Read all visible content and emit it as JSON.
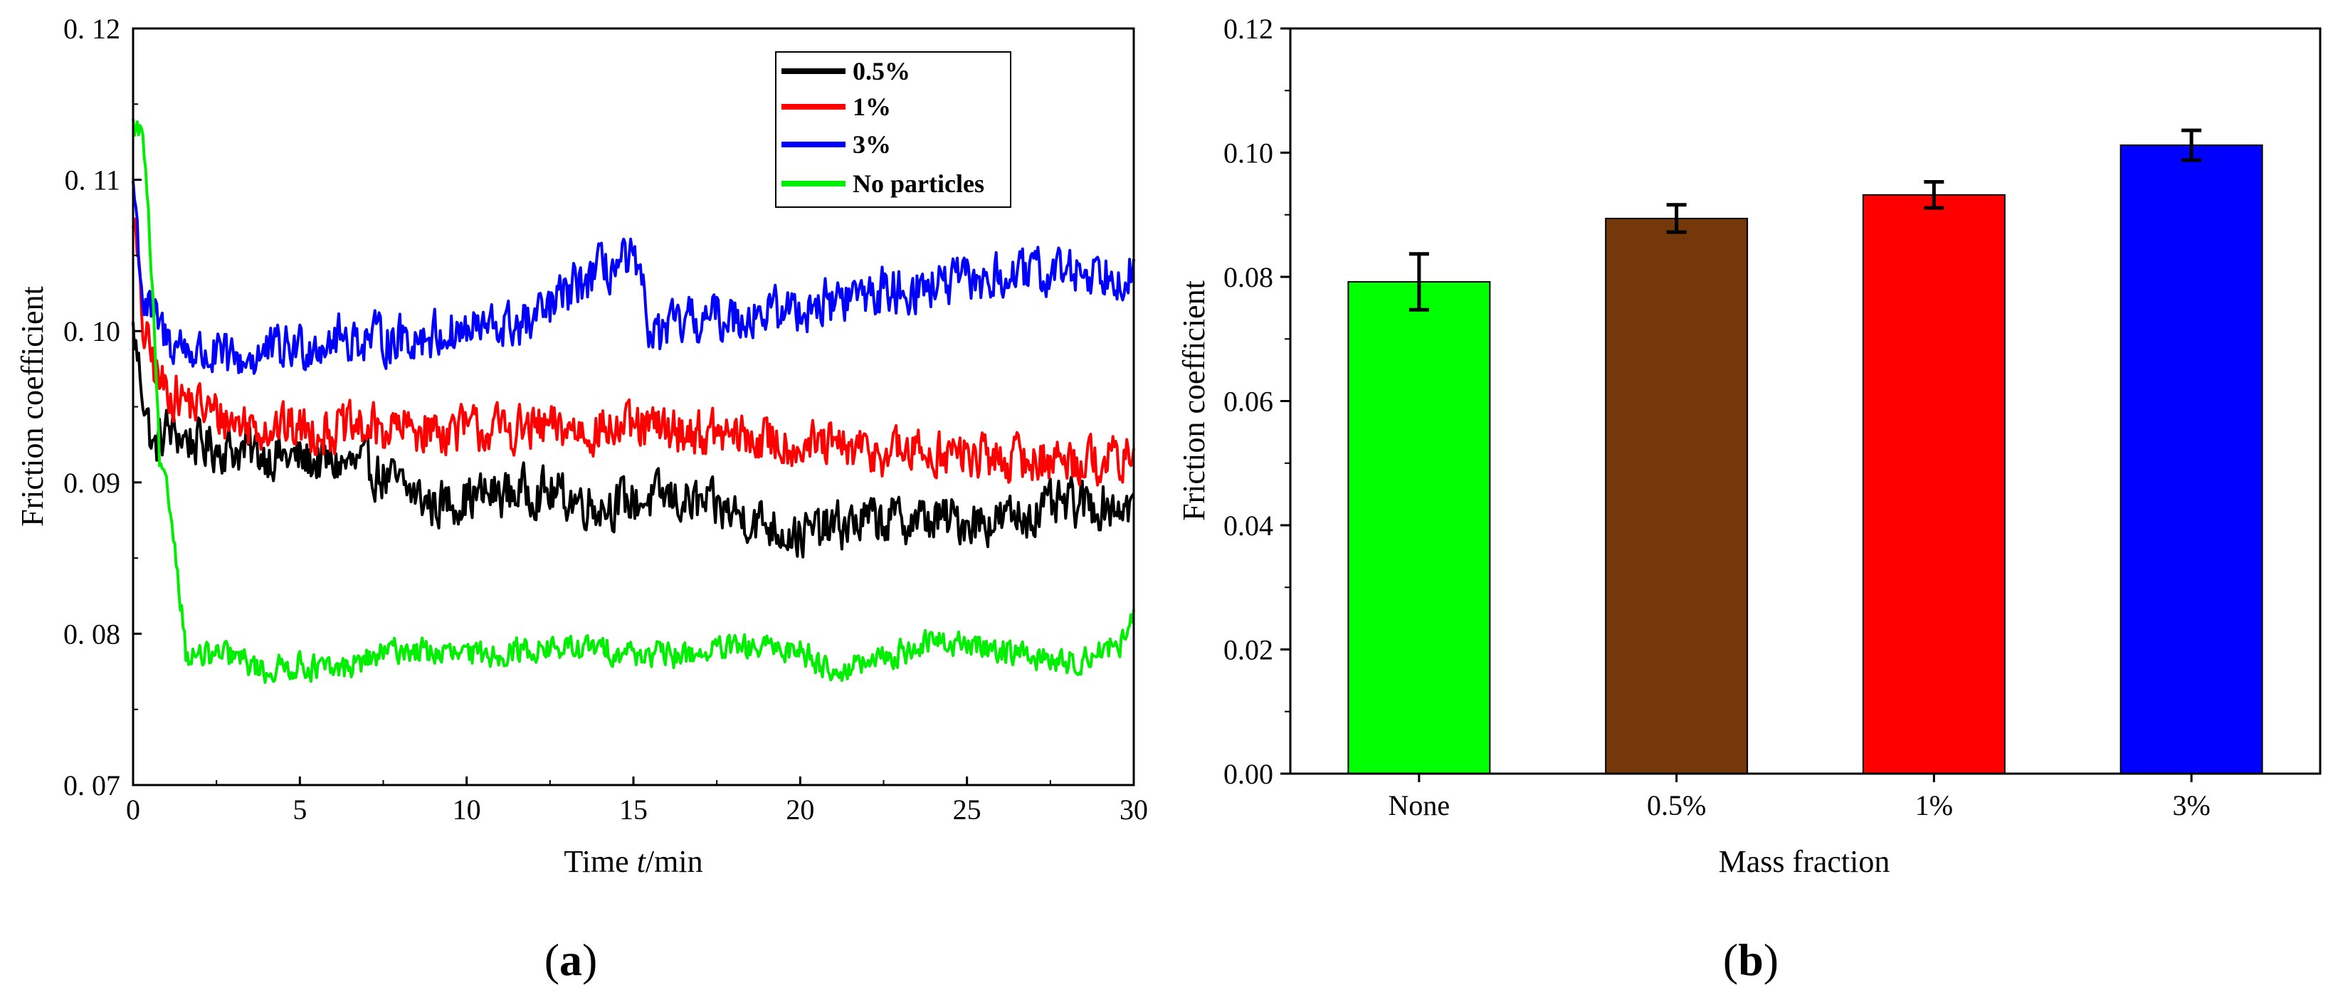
{
  "figure": {
    "panel_a_label": {
      "open": "(",
      "letter": "a",
      "close": ")"
    },
    "panel_b_label": {
      "open": "(",
      "letter": "b",
      "close": ")"
    }
  },
  "chart_data": [
    {
      "id": "a",
      "type": "line",
      "title": "",
      "xlabel": {
        "prefix": "Time ",
        "italic": "t",
        "suffix": "/min"
      },
      "ylabel": "Friction coefficient",
      "xlim": [
        0,
        30
      ],
      "ylim": [
        0.07,
        0.12
      ],
      "x_ticks": [
        0,
        5,
        10,
        15,
        20,
        25,
        30
      ],
      "x_tick_labels": [
        "0",
        "5",
        "10",
        "15",
        "20",
        "25",
        "30"
      ],
      "y_ticks": [
        0.07,
        0.08,
        0.09,
        0.1,
        0.11,
        0.12
      ],
      "y_tick_labels": [
        "0. 07",
        "0. 08",
        "0. 09",
        "0. 10",
        "0. 11",
        "0. 12"
      ],
      "grid": false,
      "legend_position": "top-right",
      "series": [
        {
          "name": "0.5%",
          "color": "#000000",
          "noise": 0.0022,
          "keypoints": [
            [
              0,
              0.1
            ],
            [
              0.3,
              0.096
            ],
            [
              0.6,
              0.092
            ],
            [
              1,
              0.0935
            ],
            [
              2,
              0.0925
            ],
            [
              3,
              0.0922
            ],
            [
              5,
              0.0915
            ],
            [
              7,
              0.091
            ],
            [
              9,
              0.0885
            ],
            [
              10,
              0.089
            ],
            [
              12,
              0.0895
            ],
            [
              14,
              0.0885
            ],
            [
              16,
              0.089
            ],
            [
              18,
              0.088
            ],
            [
              20,
              0.0865
            ],
            [
              22,
              0.0875
            ],
            [
              24,
              0.0875
            ],
            [
              26,
              0.0875
            ],
            [
              28,
              0.0885
            ],
            [
              30,
              0.0885
            ]
          ]
        },
        {
          "name": "1%",
          "color": "#ff0000",
          "noise": 0.0022,
          "keypoints": [
            [
              0,
              0.108
            ],
            [
              0.3,
              0.1
            ],
            [
              0.8,
              0.0965
            ],
            [
              1.5,
              0.0955
            ],
            [
              3,
              0.094
            ],
            [
              5,
              0.0935
            ],
            [
              8,
              0.0935
            ],
            [
              10,
              0.0935
            ],
            [
              12,
              0.0935
            ],
            [
              14,
              0.0935
            ],
            [
              16,
              0.0935
            ],
            [
              18,
              0.093
            ],
            [
              20,
              0.0925
            ],
            [
              22,
              0.092
            ],
            [
              24,
              0.092
            ],
            [
              26,
              0.0915
            ],
            [
              28,
              0.0915
            ],
            [
              30,
              0.0915
            ]
          ]
        },
        {
          "name": "3%",
          "color": "#0000ff",
          "noise": 0.0022,
          "keypoints": [
            [
              0,
              0.11
            ],
            [
              0.3,
              0.102
            ],
            [
              1,
              0.0995
            ],
            [
              2,
              0.0985
            ],
            [
              3,
              0.098
            ],
            [
              4,
              0.0985
            ],
            [
              6,
              0.0995
            ],
            [
              8,
              0.0995
            ],
            [
              10,
              0.1
            ],
            [
              12,
              0.1005
            ],
            [
              13,
              0.1025
            ],
            [
              14,
              0.104
            ],
            [
              15,
              0.1045
            ],
            [
              15.6,
              0.0995
            ],
            [
              16.5,
              0.1005
            ],
            [
              18,
              0.101
            ],
            [
              20,
              0.1015
            ],
            [
              22,
              0.1025
            ],
            [
              24,
              0.103
            ],
            [
              26,
              0.1035
            ],
            [
              28,
              0.104
            ],
            [
              30,
              0.104
            ]
          ]
        },
        {
          "name": "No particles",
          "color": "#00ee00",
          "noise": 0.0012,
          "keypoints": [
            [
              0,
              0.1135
            ],
            [
              0.3,
              0.113
            ],
            [
              0.55,
              0.104
            ],
            [
              0.8,
              0.091
            ],
            [
              1.1,
              0.0885
            ],
            [
              1.35,
              0.084
            ],
            [
              1.6,
              0.0785
            ],
            [
              2.5,
              0.0785
            ],
            [
              3,
              0.0785
            ],
            [
              4,
              0.0775
            ],
            [
              5,
              0.078
            ],
            [
              6,
              0.0775
            ],
            [
              8,
              0.079
            ],
            [
              10,
              0.0785
            ],
            [
              12,
              0.079
            ],
            [
              14,
              0.079
            ],
            [
              16,
              0.0785
            ],
            [
              18,
              0.079
            ],
            [
              20,
              0.079
            ],
            [
              21,
              0.0775
            ],
            [
              22,
              0.078
            ],
            [
              24,
              0.0795
            ],
            [
              26,
              0.079
            ],
            [
              28,
              0.078
            ],
            [
              29.7,
              0.0795
            ],
            [
              30,
              0.081
            ]
          ]
        }
      ]
    },
    {
      "id": "b",
      "type": "bar",
      "title": "",
      "xlabel": "Mass fraction",
      "ylabel": "Friction coefficient",
      "ylim": [
        0,
        0.12
      ],
      "y_ticks": [
        0.0,
        0.02,
        0.04,
        0.06,
        0.08,
        0.1,
        0.12
      ],
      "y_tick_labels": [
        "0.00",
        "0.02",
        "0.04",
        "0.06",
        "0.08",
        "0.10",
        "0.12"
      ],
      "grid": false,
      "categories": [
        "None",
        "0.5%",
        "1%",
        "3%"
      ],
      "values": [
        0.0792,
        0.0894,
        0.0932,
        0.1012
      ],
      "errors": [
        0.0045,
        0.0022,
        0.0021,
        0.0024
      ],
      "colors": [
        "#00ff00",
        "#75380b",
        "#ff0000",
        "#0000ff"
      ]
    }
  ]
}
